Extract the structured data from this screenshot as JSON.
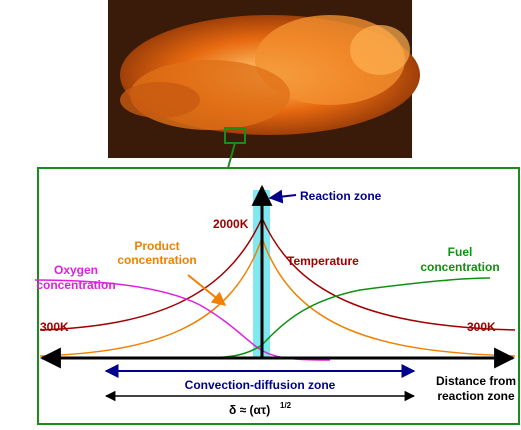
{
  "flame_diagram": {
    "reaction_zone": "Reaction zone",
    "peak_temperature": "2000K",
    "product_line1": "Product",
    "product_line2": "concentration",
    "temperature": "Temperature",
    "oxygen_line1": "Oxygen",
    "oxygen_line2": "concentration",
    "fuel_line1": "Fuel",
    "fuel_line2": "concentration",
    "left_temperature": "300K",
    "right_temperature": "300K",
    "convection_zone": "Convection-diffusion zone",
    "distance_line1": "Distance from",
    "distance_line2": "reaction zone",
    "thickness": "δ ≈ (ατ)",
    "thickness_exponent": "1/2"
  }
}
